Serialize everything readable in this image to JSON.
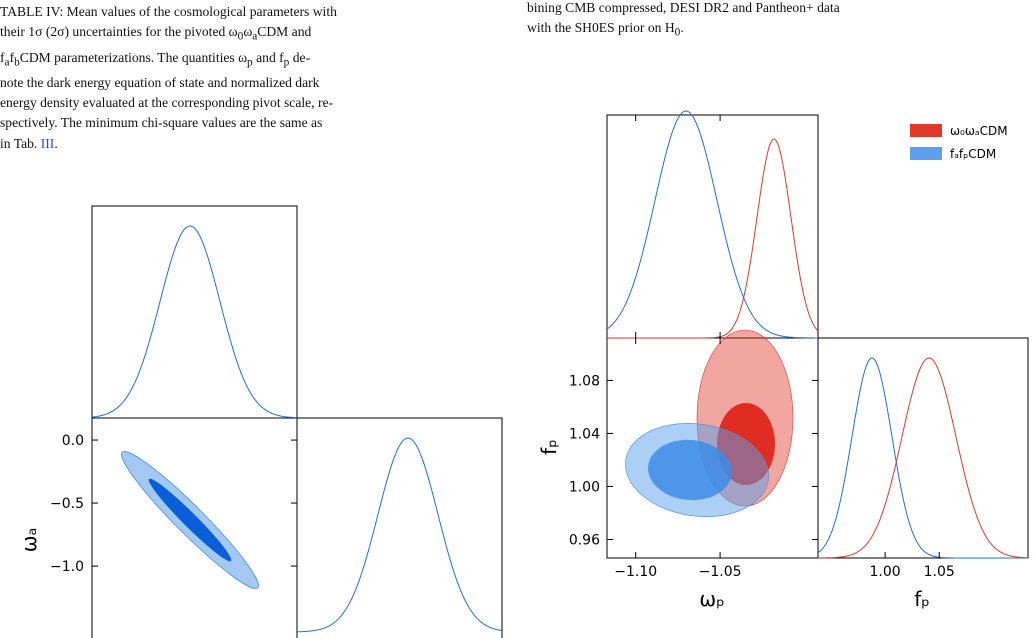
{
  "left_caption": {
    "lines": [
      [
        "TABLE IV: Mean values of the cosmological parameters with"
      ],
      [
        "their 1σ (2σ) uncertainties for the pivoted ω",
        {
          "sub": "0"
        },
        "ω",
        {
          "sub": "a"
        },
        "CDM and"
      ],
      [
        "f",
        {
          "sub": "a"
        },
        "f",
        {
          "sub": "b"
        },
        "CDM parameterizations. The quantities ω",
        {
          "sub": "p"
        },
        " and f",
        {
          "sub": "p"
        },
        " de-"
      ],
      [
        "note the dark energy equation of state and normalized dark"
      ],
      [
        "energy density evaluated at the corresponding pivot scale, re-"
      ],
      [
        "spectively. The minimum chi-square values are the same as"
      ],
      [
        "in Tab. ",
        {
          "link": "III"
        },
        "."
      ]
    ]
  },
  "right_caption": {
    "lines": [
      [
        "bining CMB compressed, DESI DR2 and Pantheon+ data"
      ],
      [
        "with the SH0ES prior on H",
        {
          "sub": "0"
        },
        "."
      ]
    ]
  },
  "left_figure": {
    "y_label": "ωₐ",
    "ylim": [
      0.175,
      -1.571
    ],
    "yticks": [
      {
        "value": 0.0,
        "label": "0.0"
      },
      {
        "value": -0.5,
        "label": "−0.5"
      },
      {
        "value": -1.0,
        "label": "−1.0"
      }
    ]
  },
  "right_figure": {
    "x_label": "ωₚ",
    "y_label": "fₚ",
    "x2_label": "fₚ",
    "xlim": [
      -1.117,
      -0.992
    ],
    "xticks": [
      {
        "value": -1.1,
        "label": "−1.10"
      },
      {
        "value": -1.05,
        "label": "−1.05"
      }
    ],
    "ylim": [
      0.946,
      1.112
    ],
    "yticks": [
      {
        "value": 0.96,
        "label": "0.96"
      },
      {
        "value": 1.0,
        "label": "1.00"
      },
      {
        "value": 1.04,
        "label": "1.04"
      },
      {
        "value": 1.08,
        "label": "1.08"
      }
    ],
    "x2lim": [
      0.938,
      1.132
    ],
    "x2ticks": [
      {
        "value": 1.0,
        "label": "1.00"
      },
      {
        "value": 1.05,
        "label": "1.05"
      }
    ],
    "legend": [
      {
        "name": "ω₀ωₐCDM",
        "color": "#e03a2a"
      },
      {
        "name": "fₐfₚCDM",
        "color": "#5aa0ec"
      }
    ]
  }
}
